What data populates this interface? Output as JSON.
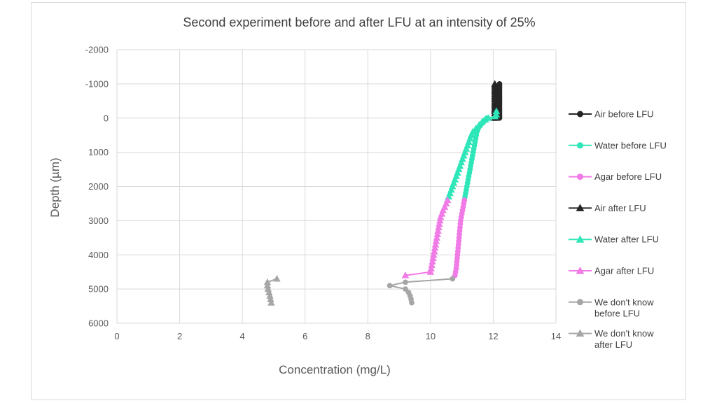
{
  "chart_data": {
    "type": "line",
    "title": "Second experiment before and after LFU at an intensity of 25%",
    "xlabel": "Concentration (mg/L)",
    "ylabel": "Depth (µm)",
    "xlim": [
      0,
      14
    ],
    "ylim": [
      -2000,
      6000
    ],
    "y_inverted": true,
    "x_ticks": [
      0,
      2,
      4,
      6,
      8,
      10,
      12,
      14
    ],
    "y_ticks": [
      -2000,
      -1000,
      0,
      1000,
      2000,
      3000,
      4000,
      5000,
      6000
    ],
    "grid": "major vertical and horizontal",
    "legend_position": "right",
    "series": [
      {
        "name": "Air before LFU",
        "color": "#262626",
        "marker": "circle",
        "points": [
          [
            12.2,
            -1000
          ],
          [
            12.2,
            -950
          ],
          [
            12.2,
            -900
          ],
          [
            12.2,
            -850
          ],
          [
            12.2,
            -800
          ],
          [
            12.2,
            -750
          ],
          [
            12.2,
            -700
          ],
          [
            12.2,
            -650
          ],
          [
            12.2,
            -600
          ],
          [
            12.2,
            -550
          ],
          [
            12.2,
            -500
          ],
          [
            12.2,
            -450
          ],
          [
            12.2,
            -400
          ],
          [
            12.2,
            -350
          ],
          [
            12.2,
            -300
          ],
          [
            12.2,
            -250
          ],
          [
            12.2,
            -200
          ],
          [
            12.2,
            -150
          ],
          [
            12.2,
            -100
          ],
          [
            12.2,
            -50
          ],
          [
            12.2,
            0
          ]
        ]
      },
      {
        "name": "Water before LFU",
        "color": "#2ee6b8",
        "marker": "circle",
        "points": [
          [
            11.8,
            0
          ],
          [
            11.75,
            50
          ],
          [
            11.7,
            100
          ],
          [
            11.65,
            150
          ],
          [
            11.6,
            200
          ],
          [
            11.55,
            250
          ],
          [
            11.52,
            300
          ],
          [
            11.5,
            350
          ],
          [
            11.48,
            400
          ],
          [
            11.46,
            500
          ],
          [
            11.44,
            600
          ],
          [
            11.42,
            700
          ],
          [
            11.4,
            800
          ],
          [
            11.38,
            900
          ],
          [
            11.36,
            1000
          ],
          [
            11.34,
            1100
          ],
          [
            11.32,
            1200
          ],
          [
            11.3,
            1300
          ],
          [
            11.28,
            1400
          ],
          [
            11.26,
            1500
          ],
          [
            11.24,
            1600
          ],
          [
            11.22,
            1700
          ],
          [
            11.2,
            1800
          ],
          [
            11.18,
            1900
          ],
          [
            11.16,
            2000
          ],
          [
            11.14,
            2100
          ],
          [
            11.12,
            2200
          ],
          [
            11.1,
            2300
          ],
          [
            11.08,
            2400
          ]
        ]
      },
      {
        "name": "Agar before LFU",
        "color": "#f07ae6",
        "marker": "circle",
        "points": [
          [
            11.08,
            2400
          ],
          [
            11.06,
            2500
          ],
          [
            11.04,
            2600
          ],
          [
            11.02,
            2700
          ],
          [
            11.0,
            2800
          ],
          [
            10.98,
            2900
          ],
          [
            10.96,
            3000
          ],
          [
            10.95,
            3100
          ],
          [
            10.94,
            3200
          ],
          [
            10.93,
            3300
          ],
          [
            10.92,
            3400
          ],
          [
            10.91,
            3500
          ],
          [
            10.9,
            3600
          ],
          [
            10.89,
            3700
          ],
          [
            10.88,
            3800
          ],
          [
            10.87,
            3900
          ],
          [
            10.86,
            4000
          ],
          [
            10.85,
            4100
          ],
          [
            10.84,
            4200
          ],
          [
            10.83,
            4300
          ],
          [
            10.82,
            4400
          ],
          [
            10.8,
            4500
          ],
          [
            10.78,
            4600
          ]
        ]
      },
      {
        "name": "Air after LFU",
        "color": "#262626",
        "marker": "triangle",
        "points": [
          [
            12.05,
            -1000
          ],
          [
            12.05,
            -950
          ],
          [
            12.05,
            -900
          ],
          [
            12.05,
            -850
          ],
          [
            12.05,
            -800
          ],
          [
            12.05,
            -750
          ],
          [
            12.05,
            -700
          ],
          [
            12.05,
            -650
          ],
          [
            12.05,
            -600
          ],
          [
            12.05,
            -550
          ],
          [
            12.05,
            -500
          ],
          [
            12.05,
            -450
          ],
          [
            12.05,
            -400
          ],
          [
            12.05,
            -350
          ],
          [
            12.05,
            -300
          ],
          [
            12.05,
            -250
          ],
          [
            12.05,
            -200
          ],
          [
            12.05,
            -150
          ],
          [
            12.05,
            -100
          ],
          [
            12.05,
            -50
          ],
          [
            12.05,
            0
          ]
        ]
      },
      {
        "name": "Water after LFU",
        "color": "#2ee6b8",
        "marker": "triangle",
        "points": [
          [
            12.1,
            -200
          ],
          [
            12.1,
            -100
          ],
          [
            12.05,
            -50
          ],
          [
            11.85,
            0
          ],
          [
            11.75,
            50
          ],
          [
            11.65,
            100
          ],
          [
            11.55,
            200
          ],
          [
            11.45,
            300
          ],
          [
            11.35,
            400
          ],
          [
            11.3,
            500
          ],
          [
            11.26,
            600
          ],
          [
            11.22,
            700
          ],
          [
            11.18,
            800
          ],
          [
            11.14,
            900
          ],
          [
            11.1,
            1000
          ],
          [
            11.06,
            1100
          ],
          [
            11.02,
            1200
          ],
          [
            10.98,
            1300
          ],
          [
            10.94,
            1400
          ],
          [
            10.9,
            1500
          ],
          [
            10.86,
            1600
          ],
          [
            10.82,
            1700
          ],
          [
            10.78,
            1800
          ],
          [
            10.74,
            1900
          ],
          [
            10.7,
            2000
          ],
          [
            10.66,
            2100
          ],
          [
            10.62,
            2200
          ],
          [
            10.58,
            2300
          ],
          [
            10.54,
            2400
          ]
        ]
      },
      {
        "name": "Agar after LFU",
        "color": "#f07ae6",
        "marker": "triangle",
        "points": [
          [
            10.54,
            2400
          ],
          [
            10.5,
            2500
          ],
          [
            10.45,
            2600
          ],
          [
            10.4,
            2700
          ],
          [
            10.36,
            2800
          ],
          [
            10.32,
            2900
          ],
          [
            10.3,
            3000
          ],
          [
            10.28,
            3100
          ],
          [
            10.26,
            3200
          ],
          [
            10.24,
            3300
          ],
          [
            10.22,
            3400
          ],
          [
            10.2,
            3500
          ],
          [
            10.18,
            3600
          ],
          [
            10.16,
            3700
          ],
          [
            10.14,
            3800
          ],
          [
            10.12,
            3900
          ],
          [
            10.1,
            4000
          ],
          [
            10.08,
            4100
          ],
          [
            10.06,
            4200
          ],
          [
            10.04,
            4300
          ],
          [
            10.02,
            4400
          ],
          [
            10.0,
            4500
          ],
          [
            9.2,
            4600
          ]
        ]
      },
      {
        "name": "We don't know before LFU",
        "color": "#a6a6a6",
        "marker": "circle",
        "points": [
          [
            10.7,
            4700
          ],
          [
            9.2,
            4800
          ],
          [
            8.7,
            4900
          ],
          [
            9.2,
            5000
          ],
          [
            9.3,
            5100
          ],
          [
            9.35,
            5200
          ],
          [
            9.38,
            5300
          ],
          [
            9.4,
            5400
          ]
        ]
      },
      {
        "name": "We don't know after LFU",
        "color": "#a6a6a6",
        "marker": "triangle",
        "points": [
          [
            5.1,
            4700
          ],
          [
            4.8,
            4800
          ],
          [
            4.8,
            4900
          ],
          [
            4.82,
            5000
          ],
          [
            4.85,
            5100
          ],
          [
            4.88,
            5200
          ],
          [
            4.9,
            5300
          ],
          [
            4.92,
            5400
          ]
        ]
      }
    ]
  },
  "legend": {
    "entries": [
      {
        "lines": [
          "Air before LFU"
        ]
      },
      {
        "lines": [
          "Water before LFU"
        ]
      },
      {
        "lines": [
          "Agar before LFU"
        ]
      },
      {
        "lines": [
          "Air after LFU"
        ]
      },
      {
        "lines": [
          "Water after LFU"
        ]
      },
      {
        "lines": [
          "Agar after LFU"
        ]
      },
      {
        "lines": [
          "We don't know",
          "before LFU"
        ]
      },
      {
        "lines": [
          "We don't know",
          "after LFU"
        ]
      }
    ]
  }
}
